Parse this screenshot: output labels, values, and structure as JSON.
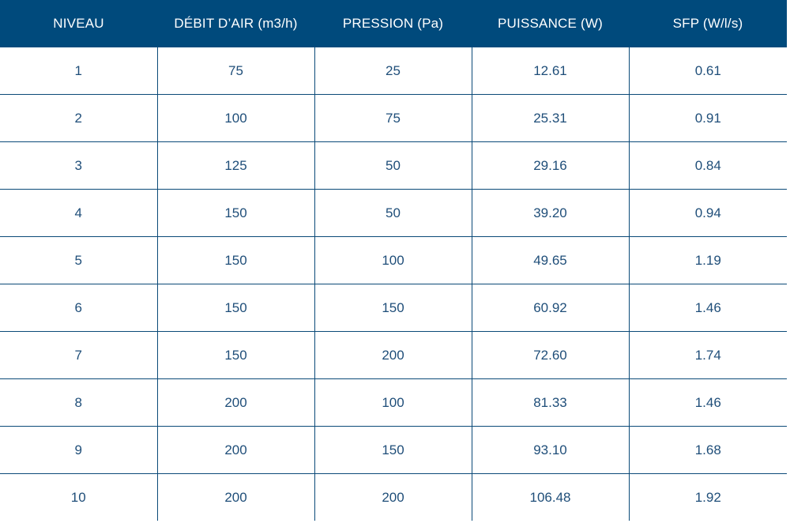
{
  "table": {
    "headers": [
      "NIVEAU",
      "DÉBIT D’AIR (m3/h)",
      "PRESSION (Pa)",
      "PUISSANCE (W)",
      "SFP (W/l/s)"
    ],
    "rows": [
      [
        "1",
        "75",
        "25",
        "12.61",
        "0.61"
      ],
      [
        "2",
        "100",
        "75",
        "25.31",
        "0.91"
      ],
      [
        "3",
        "125",
        "50",
        "29.16",
        "0.84"
      ],
      [
        "4",
        "150",
        "50",
        "39.20",
        "0.94"
      ],
      [
        "5",
        "150",
        "100",
        "49.65",
        "1.19"
      ],
      [
        "6",
        "150",
        "150",
        "60.92",
        "1.46"
      ],
      [
        "7",
        "150",
        "200",
        "72.60",
        "1.74"
      ],
      [
        "8",
        "200",
        "100",
        "81.33",
        "1.46"
      ],
      [
        "9",
        "200",
        "150",
        "93.10",
        "1.68"
      ],
      [
        "10",
        "200",
        "200",
        "106.48",
        "1.92"
      ]
    ]
  },
  "colors": {
    "header_bg": "#004a7c",
    "header_text": "#ffffff",
    "cell_text": "#1f4e79",
    "grid_lines": "#0b4a78"
  }
}
